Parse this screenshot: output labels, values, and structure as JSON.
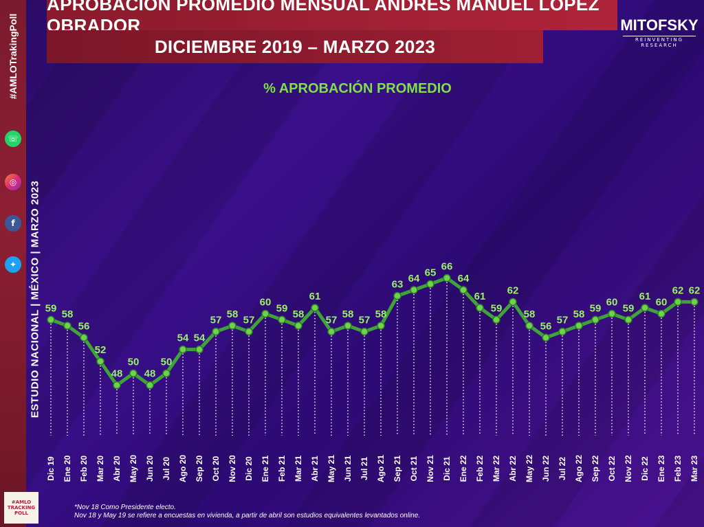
{
  "header": {
    "title": "APROBACIÓN PROMEDIO MENSUAL ANDRÉS MANUEL LÓPEZ OBRADOR",
    "subtitle": "DICIEMBRE 2019 – MARZO 2023"
  },
  "brand": {
    "name": "MITOFSKY",
    "tagline": "REINVENTING RESEARCH"
  },
  "sidebar": {
    "hashtag": "#AMLOTrakingPoll",
    "study_label": "ESTUDIO NACIONAL | MÉXICO | MARZO 2023",
    "social_icons": [
      "whatsapp-icon",
      "instagram-icon",
      "facebook-icon",
      "twitter-icon"
    ],
    "badge": "#AMLO TRACKING POLL"
  },
  "footnote": {
    "line1": "*Nov 18 Como Presidente electo.",
    "line2": "Nov 18 y May 19 se refiere a encuestas en vivienda, a partir de abril son estudios equivalentes levantados online."
  },
  "colors": {
    "line": "#3fa33a",
    "label": "#9cf06a",
    "marker": "#6fd24a",
    "dotted": "#ffffff"
  },
  "chart_data": {
    "type": "line",
    "title": "% APROBACIÓN PROMEDIO",
    "categories": [
      "Dic 19",
      "Ene 20",
      "Feb 20",
      "Mar 20",
      "Abr 20",
      "May 20",
      "Jun 20",
      "Jul 20",
      "Ago 20",
      "Sep 20",
      "Oct 20",
      "Nov 20",
      "Dic 20",
      "Ene 21",
      "Feb 21",
      "Mar 21",
      "Abr 21",
      "May 21",
      "Jun 21",
      "Jul 21",
      "Ago 21",
      "Sep 21",
      "Oct 21",
      "Nov 21",
      "Dic 21",
      "Ene 22",
      "Feb 22",
      "Mar 22",
      "Abr 22",
      "May 22",
      "Jun 22",
      "Jul 22",
      "Ago 22",
      "Sep 22",
      "Oct 22",
      "Nov 22",
      "Dic 22",
      "Ene 23",
      "Feb 23",
      "Mar 23"
    ],
    "values": [
      59,
      58,
      56,
      52,
      48,
      50,
      48,
      50,
      54,
      54,
      57,
      58,
      57,
      60,
      59,
      58,
      61,
      57,
      58,
      57,
      58,
      63,
      64,
      65,
      66,
      64,
      61,
      59,
      62,
      58,
      56,
      57,
      58,
      59,
      60,
      59,
      61,
      60,
      62,
      62
    ],
    "ylim": [
      40,
      70
    ],
    "grid": false
  }
}
